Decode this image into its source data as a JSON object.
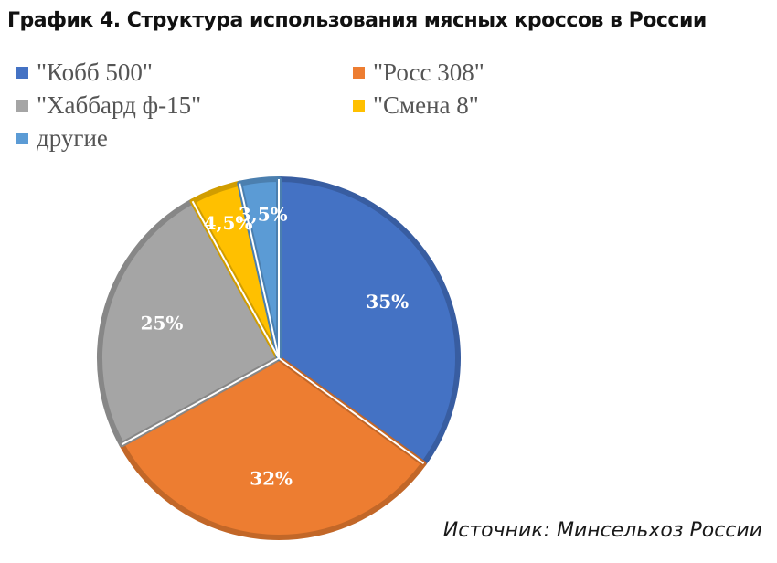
{
  "title": "График 4. Структура использования мясных кроссов в России",
  "source": "Источник: Минсельхоз России",
  "chart_data": {
    "type": "pie",
    "title": "График 4. Структура использования мясных кроссов в России",
    "legend_position": "top",
    "slices": [
      {
        "label": "\"Кобб 500\"",
        "value": 35,
        "value_label": "35%",
        "color": "#4472C4"
      },
      {
        "label": "\"Росс 308\"",
        "value": 32,
        "value_label": "32%",
        "color": "#ED7D31"
      },
      {
        "label": "\"Хаббард ф-15\"",
        "value": 25,
        "value_label": "25%",
        "color": "#A5A5A5"
      },
      {
        "label": "\"Смена 8\"",
        "value": 4.5,
        "value_label": "4,5%",
        "color": "#FFC000"
      },
      {
        "label": "другие",
        "value": 3.5,
        "value_label": "3,5%",
        "color": "#5B9BD5"
      }
    ]
  }
}
